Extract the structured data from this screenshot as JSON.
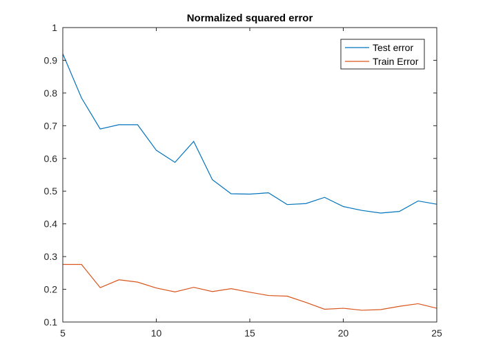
{
  "chart_data": {
    "type": "line",
    "title": "Normalized squared error",
    "xlabel": "",
    "ylabel": "",
    "xlim": [
      5,
      25
    ],
    "ylim": [
      0.1,
      1
    ],
    "xticks": [
      5,
      10,
      15,
      20,
      25
    ],
    "yticks": [
      0.1,
      0.2,
      0.3,
      0.4,
      0.5,
      0.6,
      0.7,
      0.8,
      0.9,
      1
    ],
    "ytick_labels": [
      "0.1",
      "0.2",
      "0.3",
      "0.4",
      "0.5",
      "0.6",
      "0.7",
      "0.8",
      "0.9",
      "1"
    ],
    "grid": false,
    "legend_position": "top-right",
    "x": [
      5,
      6,
      7,
      8,
      9,
      10,
      11,
      12,
      13,
      14,
      15,
      16,
      17,
      18,
      19,
      20,
      21,
      22,
      23,
      24,
      25
    ],
    "series": [
      {
        "name": "Test error",
        "color": "#0072bd",
        "values": [
          0.92,
          0.785,
          0.69,
          0.703,
          0.703,
          0.625,
          0.588,
          0.652,
          0.535,
          0.492,
          0.491,
          0.495,
          0.459,
          0.462,
          0.481,
          0.453,
          0.441,
          0.433,
          0.438,
          0.47,
          0.46
        ]
      },
      {
        "name": "Train Error",
        "color": "#d95319",
        "values": [
          0.276,
          0.276,
          0.205,
          0.229,
          0.222,
          0.204,
          0.192,
          0.206,
          0.193,
          0.202,
          0.191,
          0.181,
          0.179,
          0.16,
          0.139,
          0.142,
          0.136,
          0.138,
          0.148,
          0.156,
          0.142
        ]
      }
    ]
  }
}
